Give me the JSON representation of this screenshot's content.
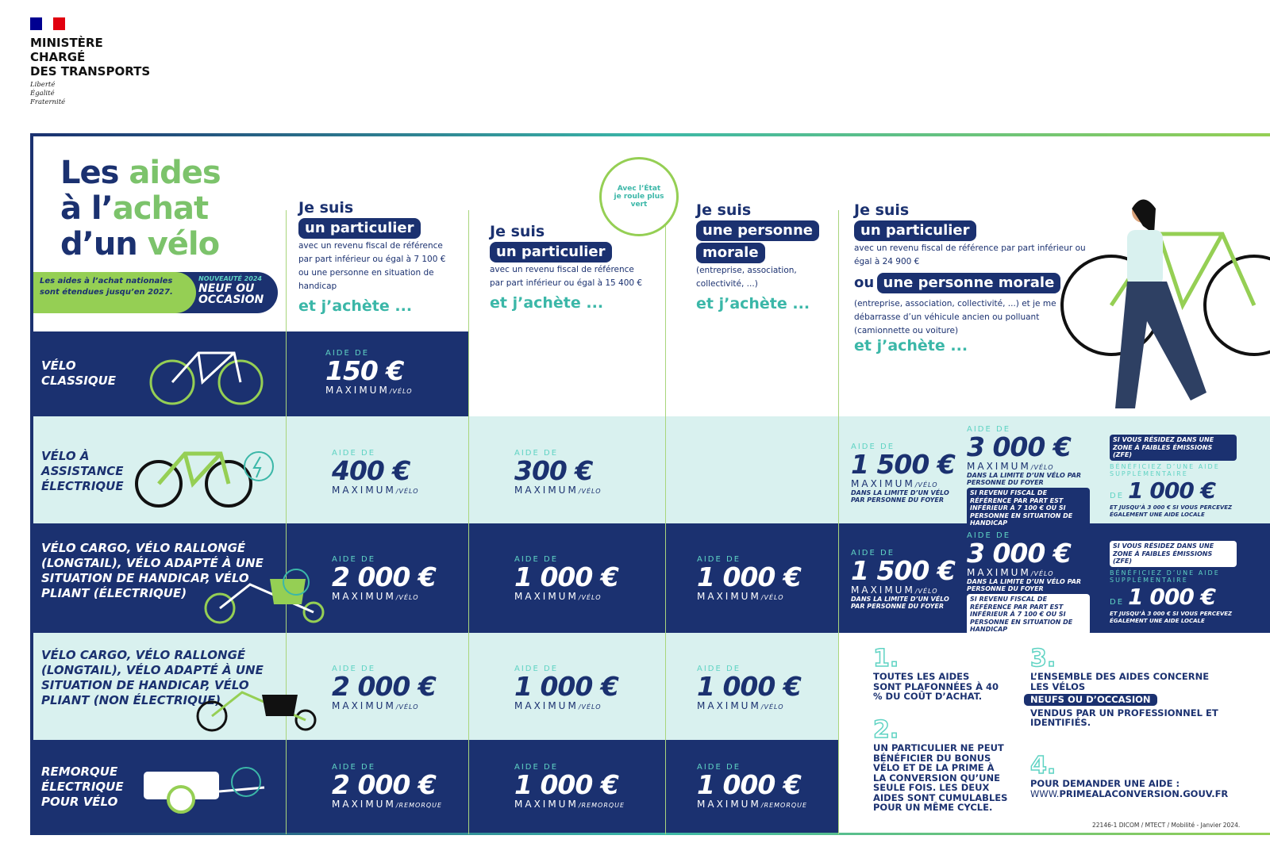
{
  "ministry": {
    "lines": [
      "MINISTÈRE",
      "CHARGÉ",
      "DES TRANSPORTS"
    ],
    "devise": [
      "Liberté",
      "Égalité",
      "Fraternité"
    ],
    "flag_colors": [
      "#000091",
      "#ffffff",
      "#e1000f"
    ]
  },
  "title": {
    "line1a": "Les ",
    "line1b": "aides",
    "line2a": "à l’",
    "line2b": "achat",
    "line3a": "d’un ",
    "line3b": "vélo"
  },
  "banner": {
    "left": "Les aides à l’achat nationales sont étendues jusqu’en 2027.",
    "new": "NOUVEAUTÉ 2024",
    "new_title": "NEUF OU OCCASION"
  },
  "stamp": {
    "text": "Avec l’État je roule plus vert"
  },
  "columns": [
    {
      "je_suis": "Je suis",
      "tag": "un particulier",
      "desc": "avec un revenu fiscal de référence par part inférieur ou égal à 7 100 € ou une personne en situation de handicap",
      "action": "et j’achète ..."
    },
    {
      "je_suis": "Je suis",
      "tag": "un particulier",
      "desc": "avec un revenu fiscal de référence par part inférieur ou égal à 15 400 €",
      "action": "et j’achète ..."
    },
    {
      "je_suis": "Je suis",
      "tag": "une personne",
      "tag2": "morale",
      "desc": "(entreprise, association, collectivité, ...)",
      "action": "et j’achète ..."
    },
    {
      "je_suis": "Je suis",
      "tag": "un particulier",
      "desc": "avec un revenu fiscal de référence par part inférieur ou égal à 24 900 €",
      "ou": "ou",
      "tag2": "une personne morale",
      "desc2": "(entreprise, association, collectivité, ...) et je me débarrasse d’un véhicule ancien ou polluant (camionnette ou voiture)",
      "action": "et j’achète ..."
    }
  ],
  "aid_label": "AIDE DE",
  "max_label": "MAXIMUM",
  "per_bike": "/VÉLO",
  "per_trailer": "/REMORQUE",
  "rows": [
    {
      "label": "VÉLO CLASSIQUE",
      "icon": "bicycle-icon",
      "values": [
        "150 €"
      ]
    },
    {
      "label": "VÉLO À ASSISTANCE ÉLECTRIQUE",
      "icon": "electric-bicycle-icon",
      "values": [
        "400 €",
        "300 €"
      ]
    },
    {
      "label": "VÉLO CARGO, VÉLO RALLONGÉ (LONGTAIL), VÉLO ADAPTÉ À UNE SITUATION DE HANDICAP, VÉLO PLIANT (ÉLECTRIQUE)",
      "icon": "electric-cargo-bike-icon",
      "values": [
        "2 000 €",
        "1 000 €",
        "1 000 €"
      ]
    },
    {
      "label": "VÉLO CARGO, VÉLO RALLONGÉ (LONGTAIL), VÉLO ADAPTÉ À UNE SITUATION DE HANDICAP, VÉLO PLIANT (NON ÉLECTRIQUE)",
      "icon": "cargo-bike-icon",
      "values": [
        "2 000 €",
        "1 000 €",
        "1 000 €"
      ]
    },
    {
      "label": "REMORQUE ÉLECTRIQUE POUR VÉLO",
      "icon": "electric-trailer-icon",
      "values": [
        "2 000 €",
        "1 000 €",
        "1 000 €"
      ]
    }
  ],
  "conversion": {
    "v1": "1 500 €",
    "v2": "3 000 €",
    "limit": "DANS LA LIMITE D’UN VÉLO PAR PERSONNE DU FOYER",
    "cond": "SI REVENU FISCAL DE RÉFÉRENCE PAR PART EST INFÉRIEUR À 7 100 € OU SI PERSONNE EN SITUATION DE HANDICAP",
    "zfe": "SI VOUS RÉSIDEZ DANS UNE ZONE À FAIBLES ÉMISSIONS (ZFE)",
    "extra": "BÉNÉFICIEZ D’UNE AIDE SUPPLÉMENTAIRE",
    "de": "DE",
    "v3": "1 000 €",
    "local": "ET JUSQU’À 3 000 € SI VOUS PERCEVEZ ÉGALEMENT UNE AIDE LOCALE"
  },
  "notes": [
    {
      "num": "1.",
      "text": "TOUTES LES AIDES SONT PLAFONNÉES À 40 % DU COÛT D’ACHAT."
    },
    {
      "num": "2.",
      "text": "UN PARTICULIER NE PEUT BÉNÉFICIER DU BONUS VÉLO ET DE LA PRIME À LA CONVERSION QU’UNE SEULE FOIS. LES DEUX AIDES SONT CUMULABLES POUR UN MÊME CYCLE."
    },
    {
      "num": "3.",
      "text": "L’ENSEMBLE DES AIDES CONCERNE LES VÉLOS",
      "tag": "NEUFS OU D’OCCASION",
      "text2": "VENDUS PAR UN PROFESSIONNEL ET IDENTIFIÉS."
    },
    {
      "num": "4.",
      "text": "POUR DEMANDER UNE AIDE :",
      "url_prefix": "WWW.",
      "url": "PRIMEALACONVERSION.GOUV.FR"
    }
  ],
  "footer": "22146-1 DICOM / MTECT / Mobilité - Janvier 2024.",
  "colors": {
    "navy": "#1b3170",
    "teal": "#3bb7a8",
    "green": "#95cf54",
    "light": "#d9f1ef"
  }
}
